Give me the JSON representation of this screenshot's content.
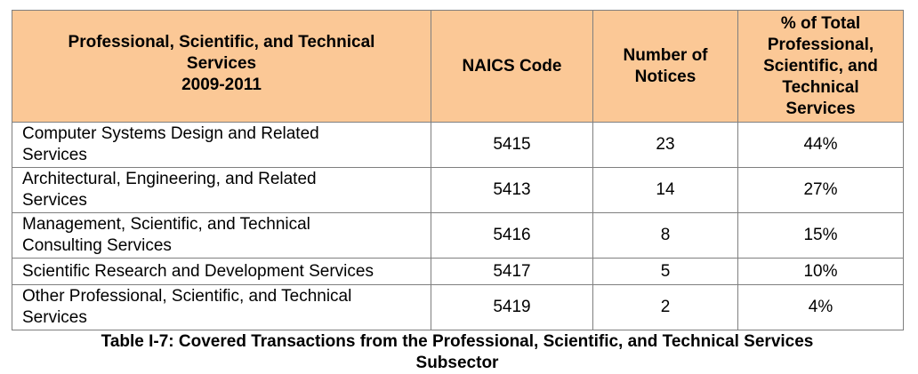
{
  "table": {
    "header": {
      "category_line1": "Professional, Scientific, and Technical",
      "category_line2": "Services",
      "category_line3": "2009-2011",
      "naics": "NAICS Code",
      "notices_line1": "Number of",
      "notices_line2": "Notices",
      "pct_line1": "% of Total",
      "pct_line2": "Professional,",
      "pct_line3": "Scientific, and",
      "pct_line4": "Technical",
      "pct_line5": "Services"
    },
    "rows": [
      {
        "name_line1": "Computer Systems Design and Related",
        "name_line2": "Services",
        "naics": "5415",
        "notices": "23",
        "pct": "44%"
      },
      {
        "name_line1": "Architectural, Engineering, and Related",
        "name_line2": "Services",
        "naics": "5413",
        "notices": "14",
        "pct": "27%"
      },
      {
        "name_line1": "Management, Scientific, and Technical",
        "name_line2": "Consulting Services",
        "naics": "5416",
        "notices": "8",
        "pct": "15%"
      },
      {
        "name_line1": "Scientific Research and Development Services",
        "name_line2": "",
        "naics": "5417",
        "notices": "5",
        "pct": "10%"
      },
      {
        "name_line1": "Other Professional, Scientific, and Technical",
        "name_line2": "Services",
        "naics": "5419",
        "notices": "2",
        "pct": "4%"
      }
    ]
  },
  "caption": {
    "line1": "Table I-7: Covered Transactions from the Professional, Scientific, and Technical Services",
    "line2": "Subsector"
  },
  "colors": {
    "header_bg": "#fbc896",
    "border": "#7f7f7f"
  }
}
